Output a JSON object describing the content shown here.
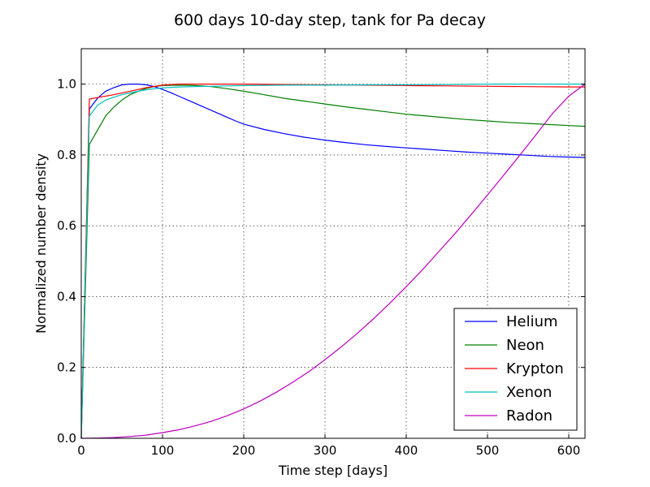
{
  "chart_data": {
    "type": "line",
    "title": "600 days 10-day step, tank for Pa decay",
    "xlabel": "Time step [days]",
    "ylabel": "Normalized number density",
    "xlim": [
      0,
      620
    ],
    "ylim": [
      0,
      1.1
    ],
    "xticks": [
      0,
      100,
      200,
      300,
      400,
      500,
      600
    ],
    "yticks": [
      0.0,
      0.2,
      0.4,
      0.6,
      0.8,
      1.0
    ],
    "xtick_labels": [
      "0",
      "100",
      "200",
      "300",
      "400",
      "500",
      "600"
    ],
    "ytick_labels": [
      "0.0",
      "0.2",
      "0.4",
      "0.6",
      "0.8",
      "1.0"
    ],
    "grid": true,
    "legend_position": "lower-right",
    "series": [
      {
        "name": "Helium",
        "color": "#0000ff",
        "x": [
          0,
          10,
          20,
          30,
          40,
          50,
          60,
          70,
          80,
          90,
          100,
          110,
          120,
          130,
          140,
          150,
          160,
          170,
          180,
          190,
          200,
          225,
          250,
          275,
          300,
          325,
          350,
          375,
          400,
          425,
          450,
          475,
          500,
          525,
          550,
          575,
          600,
          620
        ],
        "y": [
          0.0,
          0.93,
          0.96,
          0.98,
          0.99,
          0.998,
          1.0,
          1.0,
          0.998,
          0.993,
          0.985,
          0.976,
          0.966,
          0.956,
          0.946,
          0.936,
          0.926,
          0.916,
          0.906,
          0.896,
          0.887,
          0.872,
          0.86,
          0.85,
          0.842,
          0.835,
          0.829,
          0.824,
          0.82,
          0.816,
          0.812,
          0.808,
          0.805,
          0.802,
          0.799,
          0.796,
          0.794,
          0.793
        ]
      },
      {
        "name": "Neon",
        "color": "#008000",
        "x": [
          0,
          10,
          20,
          30,
          40,
          50,
          60,
          70,
          80,
          90,
          100,
          120,
          140,
          160,
          180,
          200,
          225,
          250,
          275,
          300,
          325,
          350,
          375,
          400,
          425,
          450,
          475,
          500,
          525,
          550,
          575,
          600,
          620
        ],
        "y": [
          0.0,
          0.83,
          0.87,
          0.91,
          0.935,
          0.955,
          0.97,
          0.98,
          0.988,
          0.993,
          0.996,
          0.997,
          0.996,
          0.993,
          0.987,
          0.98,
          0.97,
          0.96,
          0.952,
          0.944,
          0.936,
          0.929,
          0.922,
          0.915,
          0.91,
          0.905,
          0.9,
          0.896,
          0.892,
          0.889,
          0.886,
          0.883,
          0.881
        ]
      },
      {
        "name": "Krypton",
        "color": "#ff0000",
        "x": [
          0,
          10,
          20,
          40,
          60,
          80,
          100,
          120,
          150,
          200,
          250,
          300,
          350,
          400,
          450,
          500,
          550,
          600,
          620
        ],
        "y": [
          0.0,
          0.958,
          0.962,
          0.97,
          0.98,
          0.99,
          0.997,
          1.0,
          1.0,
          1.0,
          0.999,
          0.998,
          0.997,
          0.996,
          0.995,
          0.994,
          0.993,
          0.992,
          0.992
        ]
      },
      {
        "name": "Xenon",
        "color": "#00bfbf",
        "x": [
          0,
          10,
          20,
          30,
          40,
          50,
          60,
          70,
          80,
          90,
          100,
          120,
          140,
          160,
          180,
          200,
          250,
          300,
          350,
          400,
          450,
          500,
          550,
          600,
          620
        ],
        "y": [
          0.0,
          0.91,
          0.94,
          0.955,
          0.963,
          0.97,
          0.975,
          0.98,
          0.984,
          0.987,
          0.989,
          0.992,
          0.993,
          0.994,
          0.995,
          0.996,
          0.997,
          0.997,
          0.998,
          0.998,
          0.999,
          1.0,
          1.0,
          1.0,
          1.0
        ]
      },
      {
        "name": "Radon",
        "color": "#bf00bf",
        "x": [
          0,
          20,
          40,
          60,
          80,
          100,
          120,
          140,
          160,
          180,
          200,
          220,
          240,
          260,
          280,
          300,
          320,
          340,
          360,
          380,
          400,
          420,
          440,
          460,
          480,
          500,
          520,
          540,
          560,
          580,
          600,
          620
        ],
        "y": [
          0.0,
          0.0007,
          0.002,
          0.005,
          0.009,
          0.016,
          0.024,
          0.035,
          0.048,
          0.064,
          0.083,
          0.105,
          0.13,
          0.158,
          0.188,
          0.222,
          0.258,
          0.297,
          0.338,
          0.382,
          0.428,
          0.476,
          0.527,
          0.578,
          0.632,
          0.687,
          0.743,
          0.8,
          0.858,
          0.917,
          0.966,
          1.0
        ]
      }
    ]
  }
}
